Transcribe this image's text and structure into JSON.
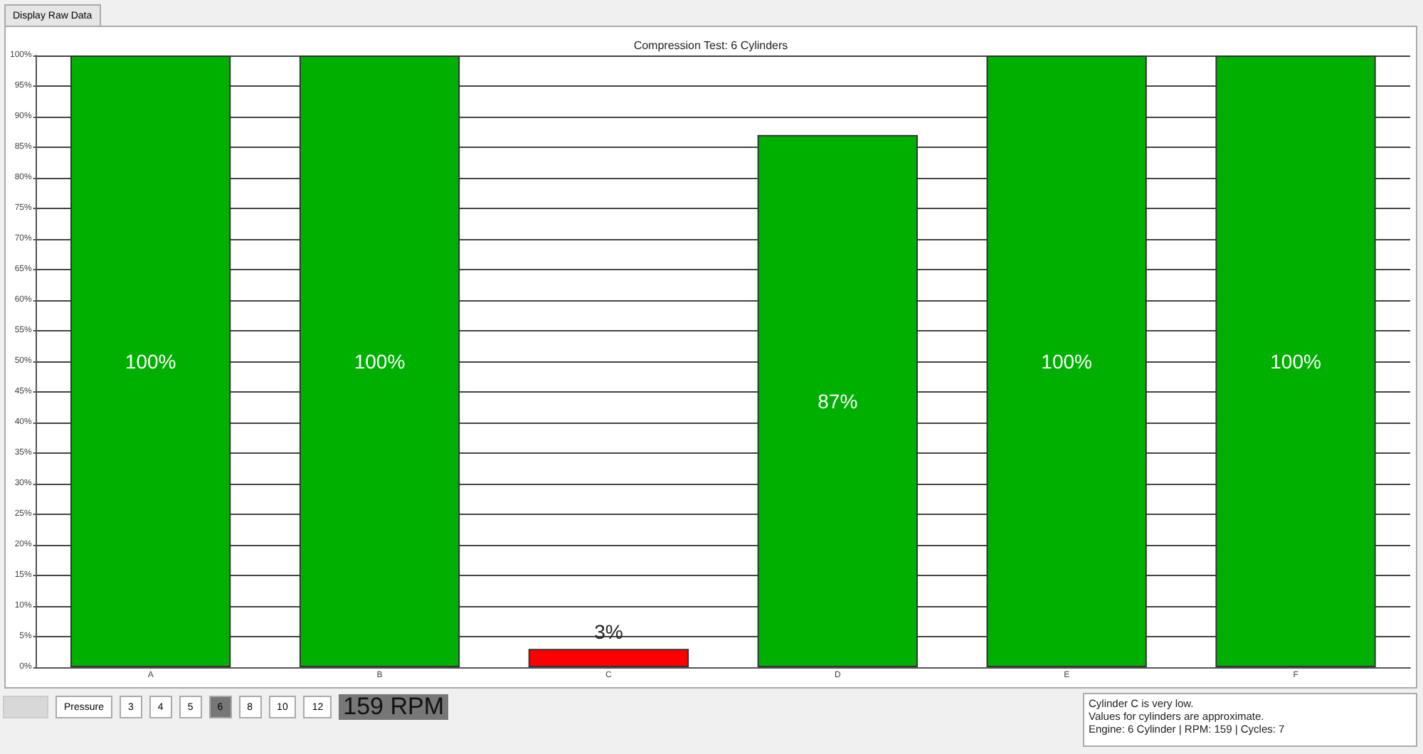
{
  "chart_data": {
    "type": "bar",
    "title": "Compression Test: 6 Cylinders",
    "categories": [
      "A",
      "B",
      "C",
      "D",
      "E",
      "F"
    ],
    "values": [
      100,
      100,
      3,
      87,
      100,
      100
    ],
    "colors": [
      "#00b000",
      "#00b000",
      "#ff0000",
      "#00b000",
      "#00b000",
      "#00b000"
    ],
    "value_labels": [
      "100%",
      "100%",
      "3%",
      "87%",
      "100%",
      "100%"
    ],
    "ylim": [
      0,
      100
    ],
    "yticks": [
      {
        "value": 0,
        "label": "0%"
      },
      {
        "value": 5,
        "label": "5%"
      },
      {
        "value": 10,
        "label": "10%"
      },
      {
        "value": 15,
        "label": "15%"
      },
      {
        "value": 20,
        "label": "20%"
      },
      {
        "value": 25,
        "label": "25%"
      },
      {
        "value": 30,
        "label": "30%"
      },
      {
        "value": 35,
        "label": "35%"
      },
      {
        "value": 40,
        "label": "40%"
      },
      {
        "value": 45,
        "label": "45%"
      },
      {
        "value": 50,
        "label": "50%"
      },
      {
        "value": 55,
        "label": "55%"
      },
      {
        "value": 60,
        "label": "60%"
      },
      {
        "value": 65,
        "label": "65%"
      },
      {
        "value": 70,
        "label": "70%"
      },
      {
        "value": 75,
        "label": "75%"
      },
      {
        "value": 80,
        "label": "80%"
      },
      {
        "value": 85,
        "label": "85%"
      },
      {
        "value": 90,
        "label": "90%"
      },
      {
        "value": 95,
        "label": "95%"
      },
      {
        "value": 100,
        "label": "100%"
      }
    ],
    "grid": "y",
    "annotations": [
      "Display Raw Data",
      "Pressure",
      "3",
      "4",
      "5",
      "6",
      "8",
      "10",
      "12",
      "159 RPM",
      "Cylinder C is very low.",
      "Values for cylinders are approximate.",
      "Engine: 6 Cylinder | RPM: 159 | Cycles: 7"
    ]
  }
}
